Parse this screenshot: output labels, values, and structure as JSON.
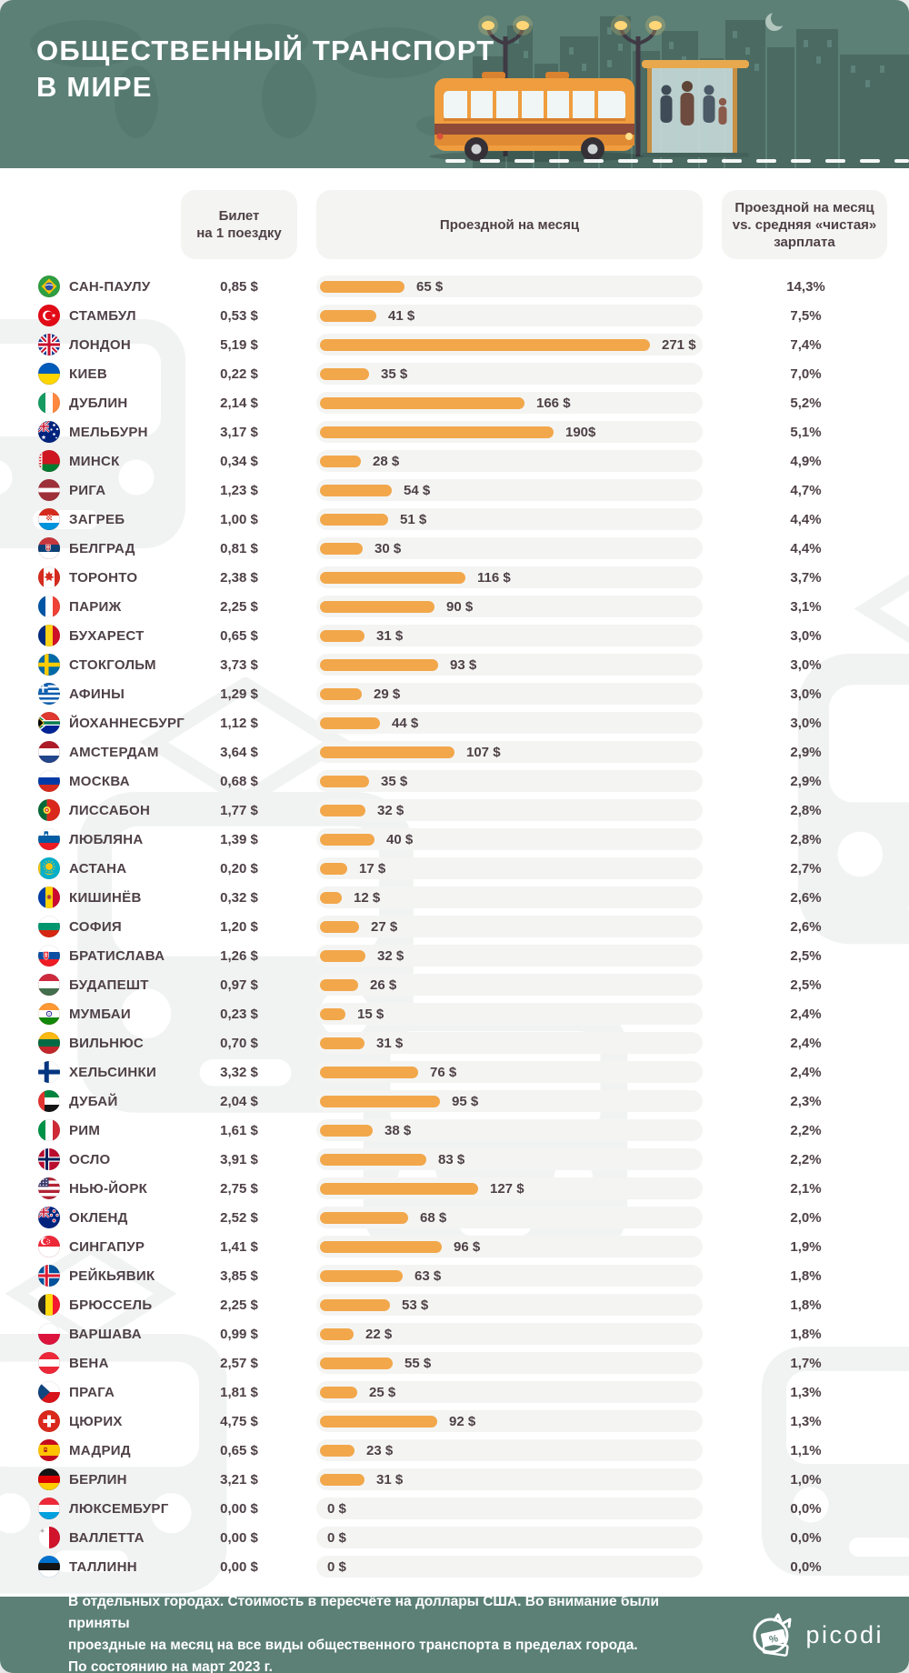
{
  "header": {
    "title_line1": "ОБЩЕСТВЕННЫЙ ТРАНСПОРТ",
    "title_line2": "В МИРЕ",
    "illustration_icons": [
      "world-map",
      "city-skyline",
      "crescent-moon",
      "street-lamp",
      "city-bus",
      "bus-stop-shelter",
      "road-dashes"
    ]
  },
  "columns": {
    "ticket_line1": "Билет",
    "ticket_line2": "на 1 поездку",
    "monthly": "Проездной на месяц",
    "salary_line1": "Проездной на месяц",
    "salary_line2": "vs. средняя «чистая»",
    "salary_line3": "зарплата"
  },
  "footer": {
    "note_line1": "В отдельных городах. Стоимость в пересчёте на доллары США. Во внимание были приняты",
    "note_line2": "проездные на месяц на все виды общественного транспорта в пределах города.",
    "note_line3": "По состоянию на март 2023 г.",
    "brand": "picodi",
    "brand_icon": "picodi-cat-coupon-icon"
  },
  "colors": {
    "teal": "#5c8076",
    "skyline": "#4a6a62",
    "accent_orange": "#f2a74b",
    "text": "#4e4147",
    "track": "#f4f5f3",
    "header_box": "#f4f4f2"
  },
  "icons": {
    "watermark": "bus-front-watermark-icon",
    "row_flag_suffix": "-flag-icon"
  },
  "rows": [
    {
      "city": "САН-ПАУЛУ",
      "flag": "brazil",
      "ticket": "0,85 $",
      "pass_label": "65 $",
      "percent": "14,3%"
    },
    {
      "city": "СТАМБУЛ",
      "flag": "turkey",
      "ticket": "0,53 $",
      "pass_label": "41 $",
      "percent": "7,5%"
    },
    {
      "city": "ЛОНДОН",
      "flag": "uk",
      "ticket": "5,19 $",
      "pass_label": "271 $",
      "percent": "7,4%"
    },
    {
      "city": "КИЕВ",
      "flag": "ukraine",
      "ticket": "0,22 $",
      "pass_label": "35 $",
      "percent": "7,0%"
    },
    {
      "city": "ДУБЛИН",
      "flag": "ireland",
      "ticket": "2,14 $",
      "pass_label": "166 $",
      "percent": "5,2%"
    },
    {
      "city": "МЕЛЬБУРН",
      "flag": "australia",
      "ticket": "3,17 $",
      "pass_label": "190$",
      "percent": "5,1%"
    },
    {
      "city": "МИНСК",
      "flag": "belarus",
      "ticket": "0,34 $",
      "pass_label": "28 $",
      "percent": "4,9%"
    },
    {
      "city": "РИГА",
      "flag": "latvia",
      "ticket": "1,23 $",
      "pass_label": "54 $",
      "percent": "4,7%"
    },
    {
      "city": "ЗАГРЕБ",
      "flag": "croatia",
      "ticket": "1,00 $",
      "pass_label": "51 $",
      "percent": "4,4%"
    },
    {
      "city": "БЕЛГРАД",
      "flag": "serbia",
      "ticket": "0,81 $",
      "pass_label": "30 $",
      "percent": "4,4%"
    },
    {
      "city": "ТОРОНТО",
      "flag": "canada",
      "ticket": "2,38 $",
      "pass_label": "116 $",
      "percent": "3,7%"
    },
    {
      "city": "ПАРИЖ",
      "flag": "france",
      "ticket": "2,25 $",
      "pass_label": "90 $",
      "percent": "3,1%"
    },
    {
      "city": "БУХАРЕСТ",
      "flag": "romania",
      "ticket": "0,65 $",
      "pass_label": "31 $",
      "percent": "3,0%"
    },
    {
      "city": "СТОКГОЛЬМ",
      "flag": "sweden",
      "ticket": "3,73 $",
      "pass_label": "93 $",
      "percent": "3,0%"
    },
    {
      "city": "АФИНЫ",
      "flag": "greece",
      "ticket": "1,29 $",
      "pass_label": "29 $",
      "percent": "3,0%"
    },
    {
      "city": "ЙОХАННЕСБУРГ",
      "flag": "south-africa",
      "ticket": "1,12 $",
      "pass_label": "44 $",
      "percent": "3,0%"
    },
    {
      "city": "АМСТЕРДАМ",
      "flag": "netherlands",
      "ticket": "3,64 $",
      "pass_label": "107 $",
      "percent": "2,9%"
    },
    {
      "city": "МОСКВА",
      "flag": "russia",
      "ticket": "0,68 $",
      "pass_label": "35 $",
      "percent": "2,9%"
    },
    {
      "city": "ЛИССАБОН",
      "flag": "portugal",
      "ticket": "1,77 $",
      "pass_label": "32 $",
      "percent": "2,8%"
    },
    {
      "city": "ЛЮБЛЯНА",
      "flag": "slovenia",
      "ticket": "1,39 $",
      "pass_label": "40 $",
      "percent": "2,8%"
    },
    {
      "city": "АСТАНА",
      "flag": "kazakhstan",
      "ticket": "0,20 $",
      "pass_label": "17 $",
      "percent": "2,7%"
    },
    {
      "city": "КИШИНЁВ",
      "flag": "moldova",
      "ticket": "0,32 $",
      "pass_label": "12 $",
      "percent": "2,6%"
    },
    {
      "city": "СОФИЯ",
      "flag": "bulgaria",
      "ticket": "1,20 $",
      "pass_label": "27 $",
      "percent": "2,6%"
    },
    {
      "city": "БРАТИСЛАВА",
      "flag": "slovakia",
      "ticket": "1,26 $",
      "pass_label": "32 $",
      "percent": "2,5%"
    },
    {
      "city": "БУДАПЕШТ",
      "flag": "hungary",
      "ticket": "0,97 $",
      "pass_label": "26 $",
      "percent": "2,5%"
    },
    {
      "city": "МУМБАИ",
      "flag": "india",
      "ticket": "0,23 $",
      "pass_label": "15 $",
      "percent": "2,4%"
    },
    {
      "city": "ВИЛЬНЮС",
      "flag": "lithuania",
      "ticket": "0,70 $",
      "pass_label": "31 $",
      "percent": "2,4%"
    },
    {
      "city": "ХЕЛЬСИНКИ",
      "flag": "finland",
      "ticket": "3,32 $",
      "pass_label": "76 $",
      "percent": "2,4%"
    },
    {
      "city": "ДУБАЙ",
      "flag": "uae",
      "ticket": "2,04 $",
      "pass_label": "95 $",
      "percent": "2,3%"
    },
    {
      "city": "РИМ",
      "flag": "italy",
      "ticket": "1,61 $",
      "pass_label": "38 $",
      "percent": "2,2%"
    },
    {
      "city": "ОСЛО",
      "flag": "norway",
      "ticket": "3,91 $",
      "pass_label": "83 $",
      "percent": "2,2%"
    },
    {
      "city": "НЬЮ-ЙОРК",
      "flag": "usa",
      "ticket": "2,75 $",
      "pass_label": "127 $",
      "percent": "2,1%"
    },
    {
      "city": "ОКЛЕНД",
      "flag": "new-zealand",
      "ticket": "2,52 $",
      "pass_label": "68 $",
      "percent": "2,0%"
    },
    {
      "city": "СИНГАПУР",
      "flag": "singapore",
      "ticket": "1,41 $",
      "pass_label": "96 $",
      "percent": "1,9%"
    },
    {
      "city": "РЕЙКЬЯВИК",
      "flag": "iceland",
      "ticket": "3,85 $",
      "pass_label": "63 $",
      "percent": "1,8%"
    },
    {
      "city": "БРЮССЕЛЬ",
      "flag": "belgium",
      "ticket": "2,25 $",
      "pass_label": "53 $",
      "percent": "1,8%"
    },
    {
      "city": "ВАРШАВА",
      "flag": "poland",
      "ticket": "0,99 $",
      "pass_label": "22 $",
      "percent": "1,8%"
    },
    {
      "city": "ВЕНА",
      "flag": "austria",
      "ticket": "2,57 $",
      "pass_label": "55 $",
      "percent": "1,7%"
    },
    {
      "city": "ПРАГА",
      "flag": "czechia",
      "ticket": "1,81 $",
      "pass_label": "25 $",
      "percent": "1,3%"
    },
    {
      "city": "ЦЮРИХ",
      "flag": "switzerland",
      "ticket": "4,75 $",
      "pass_label": "92 $",
      "percent": "1,3%"
    },
    {
      "city": "МАДРИД",
      "flag": "spain",
      "ticket": "0,65 $",
      "pass_label": "23 $",
      "percent": "1,1%"
    },
    {
      "city": "БЕРЛИН",
      "flag": "germany",
      "ticket": "3,21 $",
      "pass_label": "31 $",
      "percent": "1,0%"
    },
    {
      "city": "ЛЮКСЕМБУРГ",
      "flag": "luxembourg",
      "ticket": "0,00 $",
      "pass_label": "0 $",
      "percent": "0,0%"
    },
    {
      "city": "ВАЛЛЕТТА",
      "flag": "malta",
      "ticket": "0,00 $",
      "pass_label": "0 $",
      "percent": "0,0%"
    },
    {
      "city": "ТАЛЛИНН",
      "flag": "estonia",
      "ticket": "0,00 $",
      "pass_label": "0 $",
      "percent": "0,0%"
    }
  ],
  "chart_data": {
    "type": "bar",
    "title": "Общественный транспорт в мире",
    "note": "В отдельных городах. Стоимость в пересчёте на доллары США. Во внимание были приняты проездные на месяц на все виды общественного транспорта в пределах города. По состоянию на март 2023 г.",
    "orientation": "horizontal",
    "legend_position": "none",
    "grid": false,
    "xlim": [
      0,
      317
    ],
    "categories": [
      "Сан-Паулу",
      "Стамбул",
      "Лондон",
      "Киев",
      "Дублин",
      "Мельбурн",
      "Минск",
      "Рига",
      "Загреб",
      "Белград",
      "Торонто",
      "Париж",
      "Бухарест",
      "Стокгольм",
      "Афины",
      "Йоханнесбург",
      "Амстердам",
      "Москва",
      "Лиссабон",
      "Любляна",
      "Астана",
      "Кишинёв",
      "София",
      "Братислава",
      "Будапешт",
      "Мумбаи",
      "Вильнюс",
      "Хельсинки",
      "Дубай",
      "Рим",
      "Осло",
      "Нью-Йорк",
      "Окленд",
      "Сингапур",
      "Рейкьявик",
      "Брюссель",
      "Варшава",
      "Вена",
      "Прага",
      "Цюрих",
      "Мадрид",
      "Берлин",
      "Люксембург",
      "Валлетта",
      "Таллинн"
    ],
    "series": [
      {
        "name": "Билет на 1 поездку, $",
        "values": [
          0.85,
          0.53,
          5.19,
          0.22,
          2.14,
          3.17,
          0.34,
          1.23,
          1.0,
          0.81,
          2.38,
          2.25,
          0.65,
          3.73,
          1.29,
          1.12,
          3.64,
          0.68,
          1.77,
          1.39,
          0.2,
          0.32,
          1.2,
          1.26,
          0.97,
          0.23,
          0.7,
          3.32,
          2.04,
          1.61,
          3.91,
          2.75,
          2.52,
          1.41,
          3.85,
          2.25,
          0.99,
          2.57,
          1.81,
          4.75,
          0.65,
          3.21,
          0.0,
          0.0,
          0.0
        ]
      },
      {
        "name": "Проездной на месяц, $ (бар)",
        "values": [
          65,
          41,
          271,
          35,
          166,
          190,
          28,
          54,
          51,
          30,
          116,
          90,
          31,
          93,
          29,
          44,
          107,
          35,
          32,
          40,
          17,
          12,
          27,
          32,
          26,
          15,
          31,
          76,
          95,
          38,
          83,
          127,
          68,
          96,
          63,
          53,
          22,
          55,
          25,
          92,
          23,
          31,
          0,
          0,
          0
        ]
      },
      {
        "name": "Проездной на месяц vs. средняя «чистая» зарплата, %",
        "values": [
          14.3,
          7.5,
          7.4,
          7.0,
          5.2,
          5.1,
          4.9,
          4.7,
          4.4,
          4.4,
          3.7,
          3.1,
          3.0,
          3.0,
          3.0,
          3.0,
          2.9,
          2.9,
          2.8,
          2.8,
          2.7,
          2.6,
          2.6,
          2.5,
          2.5,
          2.4,
          2.4,
          2.4,
          2.3,
          2.2,
          2.2,
          2.1,
          2.0,
          1.9,
          1.8,
          1.8,
          1.8,
          1.7,
          1.3,
          1.3,
          1.1,
          1.0,
          0.0,
          0.0,
          0.0
        ]
      }
    ]
  }
}
